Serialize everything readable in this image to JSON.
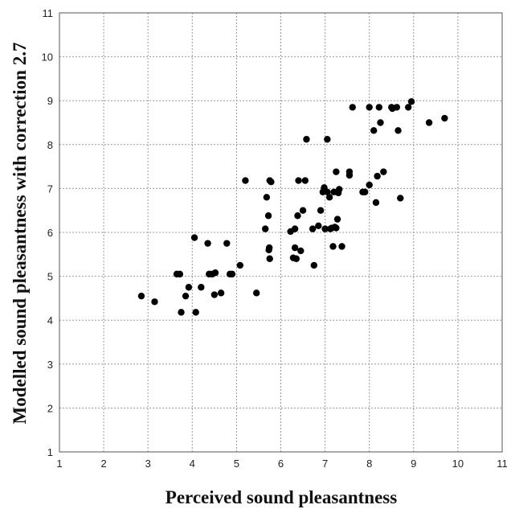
{
  "chart_data": {
    "type": "scatter",
    "xlabel": "Perceived sound pleasantness",
    "ylabel": "Modelled sound pleasantness with correction 2.7",
    "xlim": [
      1,
      11
    ],
    "ylim": [
      1,
      11
    ],
    "xticks": [
      "1",
      "2",
      "3",
      "4",
      "5",
      "6",
      "7",
      "8",
      "9",
      "10",
      "11"
    ],
    "yticks": [
      "1",
      "2",
      "3",
      "4",
      "5",
      "6",
      "7",
      "8",
      "9",
      "10",
      "11"
    ],
    "grid": true,
    "marker_color": "#000000",
    "points": [
      [
        2.85,
        4.55
      ],
      [
        3.15,
        4.42
      ],
      [
        3.65,
        5.05
      ],
      [
        3.72,
        5.05
      ],
      [
        3.75,
        4.18
      ],
      [
        3.85,
        4.55
      ],
      [
        3.92,
        4.75
      ],
      [
        4.05,
        5.88
      ],
      [
        4.08,
        4.18
      ],
      [
        4.2,
        4.75
      ],
      [
        4.35,
        5.75
      ],
      [
        4.38,
        5.05
      ],
      [
        4.45,
        5.05
      ],
      [
        4.5,
        4.58
      ],
      [
        4.52,
        5.08
      ],
      [
        4.65,
        4.62
      ],
      [
        4.78,
        5.75
      ],
      [
        4.85,
        5.05
      ],
      [
        4.9,
        5.05
      ],
      [
        5.08,
        5.25
      ],
      [
        5.2,
        7.18
      ],
      [
        5.45,
        4.62
      ],
      [
        5.65,
        6.08
      ],
      [
        5.68,
        6.8
      ],
      [
        5.72,
        6.38
      ],
      [
        5.73,
        5.6
      ],
      [
        5.74,
        5.65
      ],
      [
        5.75,
        5.4
      ],
      [
        5.75,
        7.18
      ],
      [
        5.78,
        7.15
      ],
      [
        6.22,
        6.02
      ],
      [
        6.28,
        5.42
      ],
      [
        6.32,
        6.08
      ],
      [
        6.32,
        5.65
      ],
      [
        6.35,
        5.4
      ],
      [
        6.38,
        6.38
      ],
      [
        6.4,
        7.18
      ],
      [
        6.45,
        5.58
      ],
      [
        6.5,
        6.5
      ],
      [
        6.55,
        7.18
      ],
      [
        6.58,
        8.12
      ],
      [
        6.72,
        6.08
      ],
      [
        6.75,
        5.25
      ],
      [
        6.85,
        6.15
      ],
      [
        6.9,
        6.5
      ],
      [
        6.95,
        6.92
      ],
      [
        6.98,
        7.02
      ],
      [
        7.0,
        6.08
      ],
      [
        7.05,
        8.12
      ],
      [
        7.05,
        6.92
      ],
      [
        7.1,
        6.8
      ],
      [
        7.12,
        6.08
      ],
      [
        7.15,
        6.1
      ],
      [
        7.18,
        5.68
      ],
      [
        7.2,
        6.92
      ],
      [
        7.22,
        6.12
      ],
      [
        7.25,
        7.38
      ],
      [
        7.25,
        6.1
      ],
      [
        7.28,
        6.3
      ],
      [
        7.3,
        6.9
      ],
      [
        7.32,
        6.98
      ],
      [
        7.38,
        5.68
      ],
      [
        7.55,
        7.3
      ],
      [
        7.55,
        7.38
      ],
      [
        7.62,
        8.85
      ],
      [
        7.85,
        6.92
      ],
      [
        7.9,
        6.92
      ],
      [
        8.0,
        7.08
      ],
      [
        8.0,
        8.85
      ],
      [
        8.1,
        8.32
      ],
      [
        8.15,
        6.68
      ],
      [
        8.18,
        7.28
      ],
      [
        8.22,
        8.85
      ],
      [
        8.25,
        8.5
      ],
      [
        8.32,
        7.38
      ],
      [
        8.5,
        8.85
      ],
      [
        8.52,
        8.82
      ],
      [
        8.62,
        8.85
      ],
      [
        8.65,
        8.32
      ],
      [
        8.7,
        6.78
      ],
      [
        8.88,
        8.85
      ],
      [
        8.95,
        8.98
      ],
      [
        9.35,
        8.5
      ],
      [
        9.7,
        8.6
      ]
    ]
  }
}
